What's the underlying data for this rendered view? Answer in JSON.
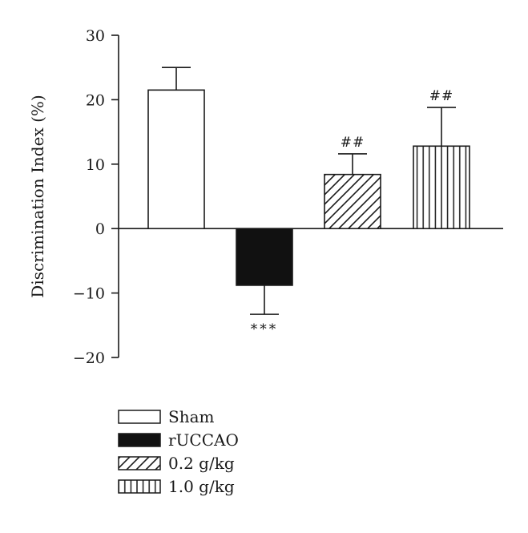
{
  "chart_data": {
    "type": "bar",
    "title": "",
    "xlabel": "",
    "ylabel": "Discrimination Index (%)",
    "ylim": [
      -20,
      30
    ],
    "yticks": [
      30,
      20,
      10,
      0,
      -10,
      -20
    ],
    "ytick_labels": [
      "30",
      "20",
      "10",
      "0",
      "−10",
      "−20"
    ],
    "grid": false,
    "legend_placement": "bottom-left",
    "categories": [
      "Sham",
      "rUCCAO",
      "0.2 g/kg",
      "1.0 g/kg"
    ],
    "values": [
      21.5,
      -8.8,
      8.4,
      12.8
    ],
    "error_bars": [
      3.5,
      4.5,
      3.2,
      6.0
    ],
    "fills": [
      "white",
      "black",
      "diagonal-hatch",
      "vertical-hatch"
    ],
    "annotations": [
      "",
      "***",
      "##",
      "##"
    ]
  }
}
